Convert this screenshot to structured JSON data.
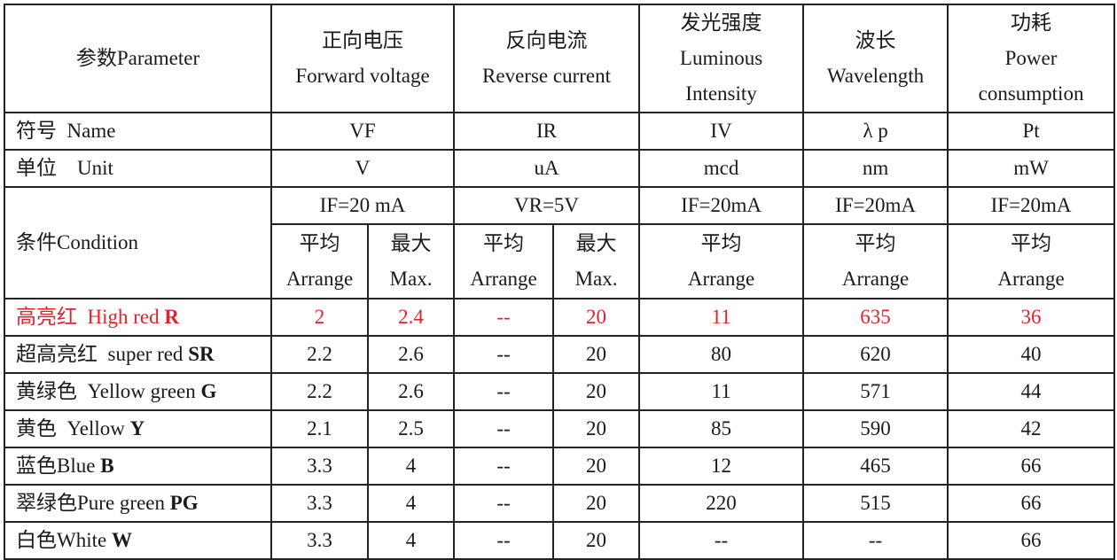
{
  "table": {
    "header": {
      "parameter": "参数Parameter",
      "vf": [
        "正向电压",
        "Forward voltage"
      ],
      "ir": [
        "反向电流",
        "Reverse current"
      ],
      "iv": [
        "发光强度",
        "Luminous",
        "Intensity"
      ],
      "wl": [
        "波长",
        "Wavelength"
      ],
      "pw": [
        "功耗",
        "Power",
        "consumption"
      ]
    },
    "name_row": {
      "label": "符号  Name",
      "vf": "VF",
      "ir": "IR",
      "iv": "IV",
      "wl": "λ p",
      "pw": "Pt"
    },
    "unit_row": {
      "label": "单位    Unit",
      "vf": "V",
      "ir": "uA",
      "iv": "mcd",
      "wl": "nm",
      "pw": "mW"
    },
    "condition": {
      "label": "条件Condition",
      "vf": "IF=20 mA",
      "ir": "VR=5V",
      "iv": "IF=20mA",
      "wl": "IF=20mA",
      "pw": "IF=20mA",
      "avg_cn": "平均",
      "avg_en": "Arrange",
      "max_cn": "最大",
      "max_en": "Max."
    },
    "rows": [
      {
        "name": "高亮红  High red ",
        "code": "R",
        "vf_avg": "2",
        "vf_max": "2.4",
        "ir_avg": "--",
        "ir_max": "20",
        "iv": "11",
        "wl": "635",
        "pw": "36"
      },
      {
        "name": "超高亮红  super red ",
        "code": "SR",
        "vf_avg": "2.2",
        "vf_max": "2.6",
        "ir_avg": "--",
        "ir_max": "20",
        "iv": "80",
        "wl": "620",
        "pw": "40"
      },
      {
        "name": "黄绿色  Yellow green ",
        "code": "G",
        "vf_avg": "2.2",
        "vf_max": "2.6",
        "ir_avg": "--",
        "ir_max": "20",
        "iv": "11",
        "wl": "571",
        "pw": "44"
      },
      {
        "name": "黄色  Yellow ",
        "code": "Y",
        "vf_avg": "2.1",
        "vf_max": "2.5",
        "ir_avg": "--",
        "ir_max": "20",
        "iv": "85",
        "wl": "590",
        "pw": "42"
      },
      {
        "name": "蓝色Blue ",
        "code": "B",
        "vf_avg": "3.3",
        "vf_max": "4",
        "ir_avg": "--",
        "ir_max": "20",
        "iv": "12",
        "wl": "465",
        "pw": "66"
      },
      {
        "name": "翠绿色Pure green ",
        "code": "PG",
        "vf_avg": "3.3",
        "vf_max": "4",
        "ir_avg": "--",
        "ir_max": "20",
        "iv": "220",
        "wl": "515",
        "pw": "66"
      },
      {
        "name": "白色White ",
        "code": "W",
        "vf_avg": "3.3",
        "vf_max": "4",
        "ir_avg": "--",
        "ir_max": "20",
        "iv": "--",
        "wl": "--",
        "pw": "66"
      }
    ]
  },
  "colors": {
    "highlight_row": "#e0242b",
    "text": "#1a1a1a",
    "border": "#222222"
  }
}
